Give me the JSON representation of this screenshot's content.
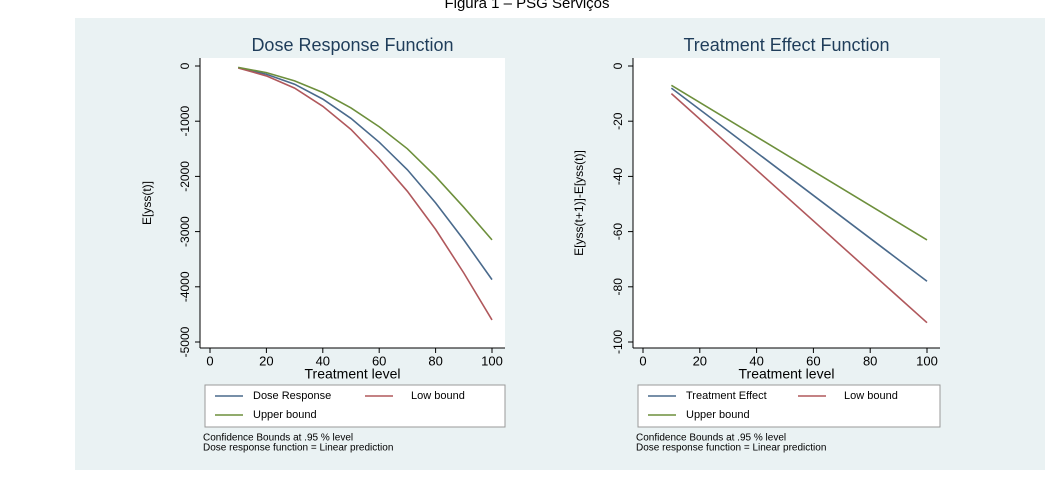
{
  "caption": "Figura 1 – PSG Serviços",
  "chart_data": [
    {
      "type": "line",
      "title": "Dose Response Function",
      "xlabel": "Treatment level",
      "ylabel": "E[yss(t)]",
      "x": [
        10,
        20,
        30,
        40,
        50,
        60,
        70,
        80,
        90,
        100
      ],
      "series": [
        {
          "name": "Dose Response",
          "color": "#4a6a8c",
          "values": [
            -30,
            -150,
            -330,
            -600,
            -950,
            -1380,
            -1880,
            -2480,
            -3150,
            -3870
          ]
        },
        {
          "name": "Low bound",
          "color": "#b0585c",
          "values": [
            -35,
            -180,
            -400,
            -730,
            -1150,
            -1680,
            -2270,
            -2960,
            -3750,
            -4600
          ]
        },
        {
          "name": "Upper bound",
          "color": "#6d8f3c",
          "values": [
            -25,
            -120,
            -270,
            -480,
            -760,
            -1100,
            -1500,
            -2000,
            -2560,
            -3150
          ]
        }
      ],
      "xlim": [
        0,
        100
      ],
      "xticks": [
        0,
        20,
        40,
        60,
        80,
        100
      ],
      "ylim": [
        -5000,
        0
      ],
      "yticks": [
        0,
        -1000,
        -2000,
        -3000,
        -4000,
        -5000
      ],
      "legend": "bottom",
      "notes": [
        "Confidence Bounds at .95 % level",
        "Dose response function = Linear prediction"
      ]
    },
    {
      "type": "line",
      "title": "Treatment Effect Function",
      "xlabel": "Treatment level",
      "ylabel": "E[yss(t+1)]-E[yss(t)]",
      "x": [
        10,
        100
      ],
      "series": [
        {
          "name": "Treatment Effect",
          "color": "#4a6a8c",
          "values": [
            -8,
            -78
          ]
        },
        {
          "name": "Low bound",
          "color": "#b0585c",
          "values": [
            -10,
            -93
          ]
        },
        {
          "name": "Upper bound",
          "color": "#6d8f3c",
          "values": [
            -7,
            -63
          ]
        }
      ],
      "xlim": [
        0,
        100
      ],
      "xticks": [
        0,
        20,
        40,
        60,
        80,
        100
      ],
      "ylim": [
        -100,
        0
      ],
      "yticks": [
        0,
        -20,
        -40,
        -60,
        -80,
        -100
      ],
      "legend": "bottom",
      "notes": [
        "Confidence Bounds at .95 % level",
        "Dose response function = Linear prediction"
      ]
    }
  ]
}
